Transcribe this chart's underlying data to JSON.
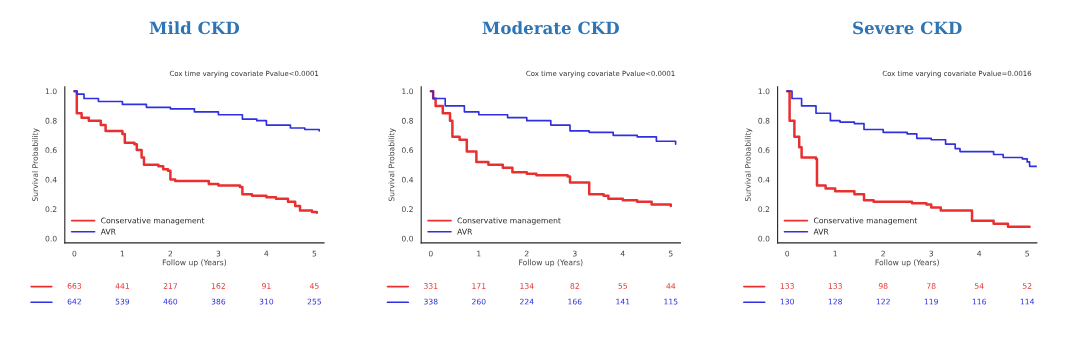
{
  "chart_data": [
    {
      "type": "step",
      "title": "Mild CKD",
      "xlabel": "Follow up (Years)",
      "ylabel": "Survival Probability",
      "xlim": [
        -0.2,
        5.2
      ],
      "xticks": [
        0,
        1,
        2,
        3,
        4,
        5
      ],
      "ylim": [
        -0.03,
        1.03
      ],
      "yticks": [
        {
          "value": 0,
          "label": "0.0"
        },
        {
          "value": 0.2,
          "label": "0.2"
        },
        {
          "value": 0.4,
          "label": "0.4"
        },
        {
          "value": 0.6,
          "label": "0.6"
        },
        {
          "value": 0.8,
          "label": "0.8"
        },
        {
          "value": 1,
          "label": "1.0"
        }
      ],
      "grid": false,
      "legend": "bottom left",
      "annotations": [
        "Cox time varying covariate Pvalue<0.0001",
        "663 441 217 162 91 45",
        "642 539 460 386 310 255"
      ],
      "series": [
        {
          "name": "Conservative management",
          "color": "#e83030",
          "x": [
            0,
            0.05,
            0.15,
            0.3,
            0.55,
            0.65,
            1.0,
            1.05,
            1.25,
            1.3,
            1.4,
            1.45,
            1.75,
            1.85,
            1.95,
            2.0,
            2.1,
            2.6,
            2.8,
            3.0,
            3.45,
            3.5,
            3.7,
            4.0,
            4.2,
            4.45,
            4.6,
            4.7,
            4.95,
            5.05
          ],
          "values": [
            1.0,
            0.85,
            0.82,
            0.8,
            0.77,
            0.73,
            0.71,
            0.65,
            0.64,
            0.6,
            0.55,
            0.5,
            0.49,
            0.47,
            0.46,
            0.4,
            0.39,
            0.39,
            0.37,
            0.36,
            0.35,
            0.3,
            0.29,
            0.28,
            0.27,
            0.25,
            0.22,
            0.19,
            0.18,
            0.175
          ]
        },
        {
          "name": "AVR",
          "color": "#3030e0",
          "x": [
            0,
            0.05,
            0.2,
            0.5,
            1.0,
            1.5,
            2.0,
            2.5,
            3.0,
            3.5,
            3.8,
            4.0,
            4.5,
            4.8,
            5.1
          ],
          "values": [
            1.0,
            0.98,
            0.95,
            0.93,
            0.91,
            0.89,
            0.88,
            0.86,
            0.84,
            0.81,
            0.8,
            0.77,
            0.75,
            0.74,
            0.73
          ]
        }
      ]
    },
    {
      "type": "step",
      "title": "Moderate CKD",
      "xlabel": "Follow up (Years)",
      "ylabel": "Survival Probability",
      "xlim": [
        -0.2,
        5.2
      ],
      "xticks": [
        0,
        1,
        2,
        3,
        4,
        5
      ],
      "ylim": [
        -0.03,
        1.03
      ],
      "yticks": [
        {
          "value": 0,
          "label": "0.0"
        },
        {
          "value": 0.2,
          "label": "0.2"
        },
        {
          "value": 0.4,
          "label": "0.4"
        },
        {
          "value": 0.6,
          "label": "0.6"
        },
        {
          "value": 0.8,
          "label": "0.8"
        },
        {
          "value": 1,
          "label": "1.0"
        }
      ],
      "grid": false,
      "legend": "bottom left",
      "annotations": [
        "Cox time varying covariate Pvalue<0.0001",
        "331 171 134 82 55 44",
        "338 260 224 166 141 115"
      ],
      "series": [
        {
          "name": "Conservative management",
          "color": "#e83030",
          "x": [
            0,
            0.05,
            0.1,
            0.25,
            0.4,
            0.45,
            0.6,
            0.75,
            0.95,
            1.2,
            1.5,
            1.7,
            2.0,
            2.2,
            2.85,
            2.9,
            3.3,
            3.6,
            3.7,
            4.0,
            4.3,
            4.6,
            5.0
          ],
          "values": [
            1.0,
            0.95,
            0.9,
            0.85,
            0.8,
            0.69,
            0.67,
            0.59,
            0.52,
            0.5,
            0.48,
            0.45,
            0.44,
            0.43,
            0.42,
            0.38,
            0.3,
            0.29,
            0.27,
            0.26,
            0.25,
            0.23,
            0.22
          ]
        },
        {
          "name": "AVR",
          "color": "#3030e0",
          "x": [
            0,
            0.05,
            0.3,
            0.7,
            1.0,
            1.6,
            2.0,
            2.5,
            2.9,
            3.3,
            3.8,
            4.3,
            4.7,
            5.1
          ],
          "values": [
            1.0,
            0.95,
            0.9,
            0.86,
            0.84,
            0.82,
            0.8,
            0.77,
            0.73,
            0.72,
            0.7,
            0.69,
            0.66,
            0.64
          ]
        }
      ]
    },
    {
      "type": "step",
      "title": "Severe CKD",
      "xlabel": "Follow up (Years)",
      "ylabel": "Survival Probability",
      "xlim": [
        -0.2,
        5.2
      ],
      "xticks": [
        0,
        1,
        2,
        3,
        4,
        5
      ],
      "ylim": [
        -0.03,
        1.03
      ],
      "yticks": [
        {
          "value": 0,
          "label": "0.0"
        },
        {
          "value": 0.2,
          "label": "0.2"
        },
        {
          "value": 0.4,
          "label": "0.4"
        },
        {
          "value": 0.6,
          "label": "0.6"
        },
        {
          "value": 0.8,
          "label": "0.8"
        },
        {
          "value": 1,
          "label": "1.0"
        }
      ],
      "grid": false,
      "legend": "bottom left",
      "annotations": [
        "Cox time varying covariate Pvalue=0.0016",
        "133 133 98 78 54 52",
        "130 128 122 119 116 114"
      ],
      "series": [
        {
          "name": "Conservative management",
          "color": "#e83030",
          "x": [
            0,
            0.05,
            0.15,
            0.25,
            0.3,
            0.6,
            0.62,
            0.8,
            1.0,
            1.4,
            1.6,
            1.8,
            2.6,
            2.9,
            3.0,
            3.2,
            3.85,
            4.3,
            4.6,
            5.05
          ],
          "values": [
            1.0,
            0.8,
            0.69,
            0.62,
            0.55,
            0.54,
            0.36,
            0.34,
            0.32,
            0.3,
            0.26,
            0.25,
            0.24,
            0.23,
            0.21,
            0.19,
            0.12,
            0.1,
            0.08,
            0.08
          ]
        },
        {
          "name": "AVR",
          "color": "#3030e0",
          "x": [
            0,
            0.1,
            0.3,
            0.6,
            0.9,
            1.1,
            1.4,
            1.6,
            2.0,
            2.5,
            2.7,
            3.0,
            3.3,
            3.5,
            3.6,
            4.1,
            4.3,
            4.5,
            4.9,
            5.0,
            5.05,
            5.2
          ],
          "values": [
            1.0,
            0.95,
            0.9,
            0.85,
            0.8,
            0.79,
            0.78,
            0.74,
            0.72,
            0.71,
            0.68,
            0.67,
            0.64,
            0.61,
            0.59,
            0.59,
            0.57,
            0.55,
            0.54,
            0.52,
            0.49,
            0.49
          ]
        }
      ]
    }
  ]
}
